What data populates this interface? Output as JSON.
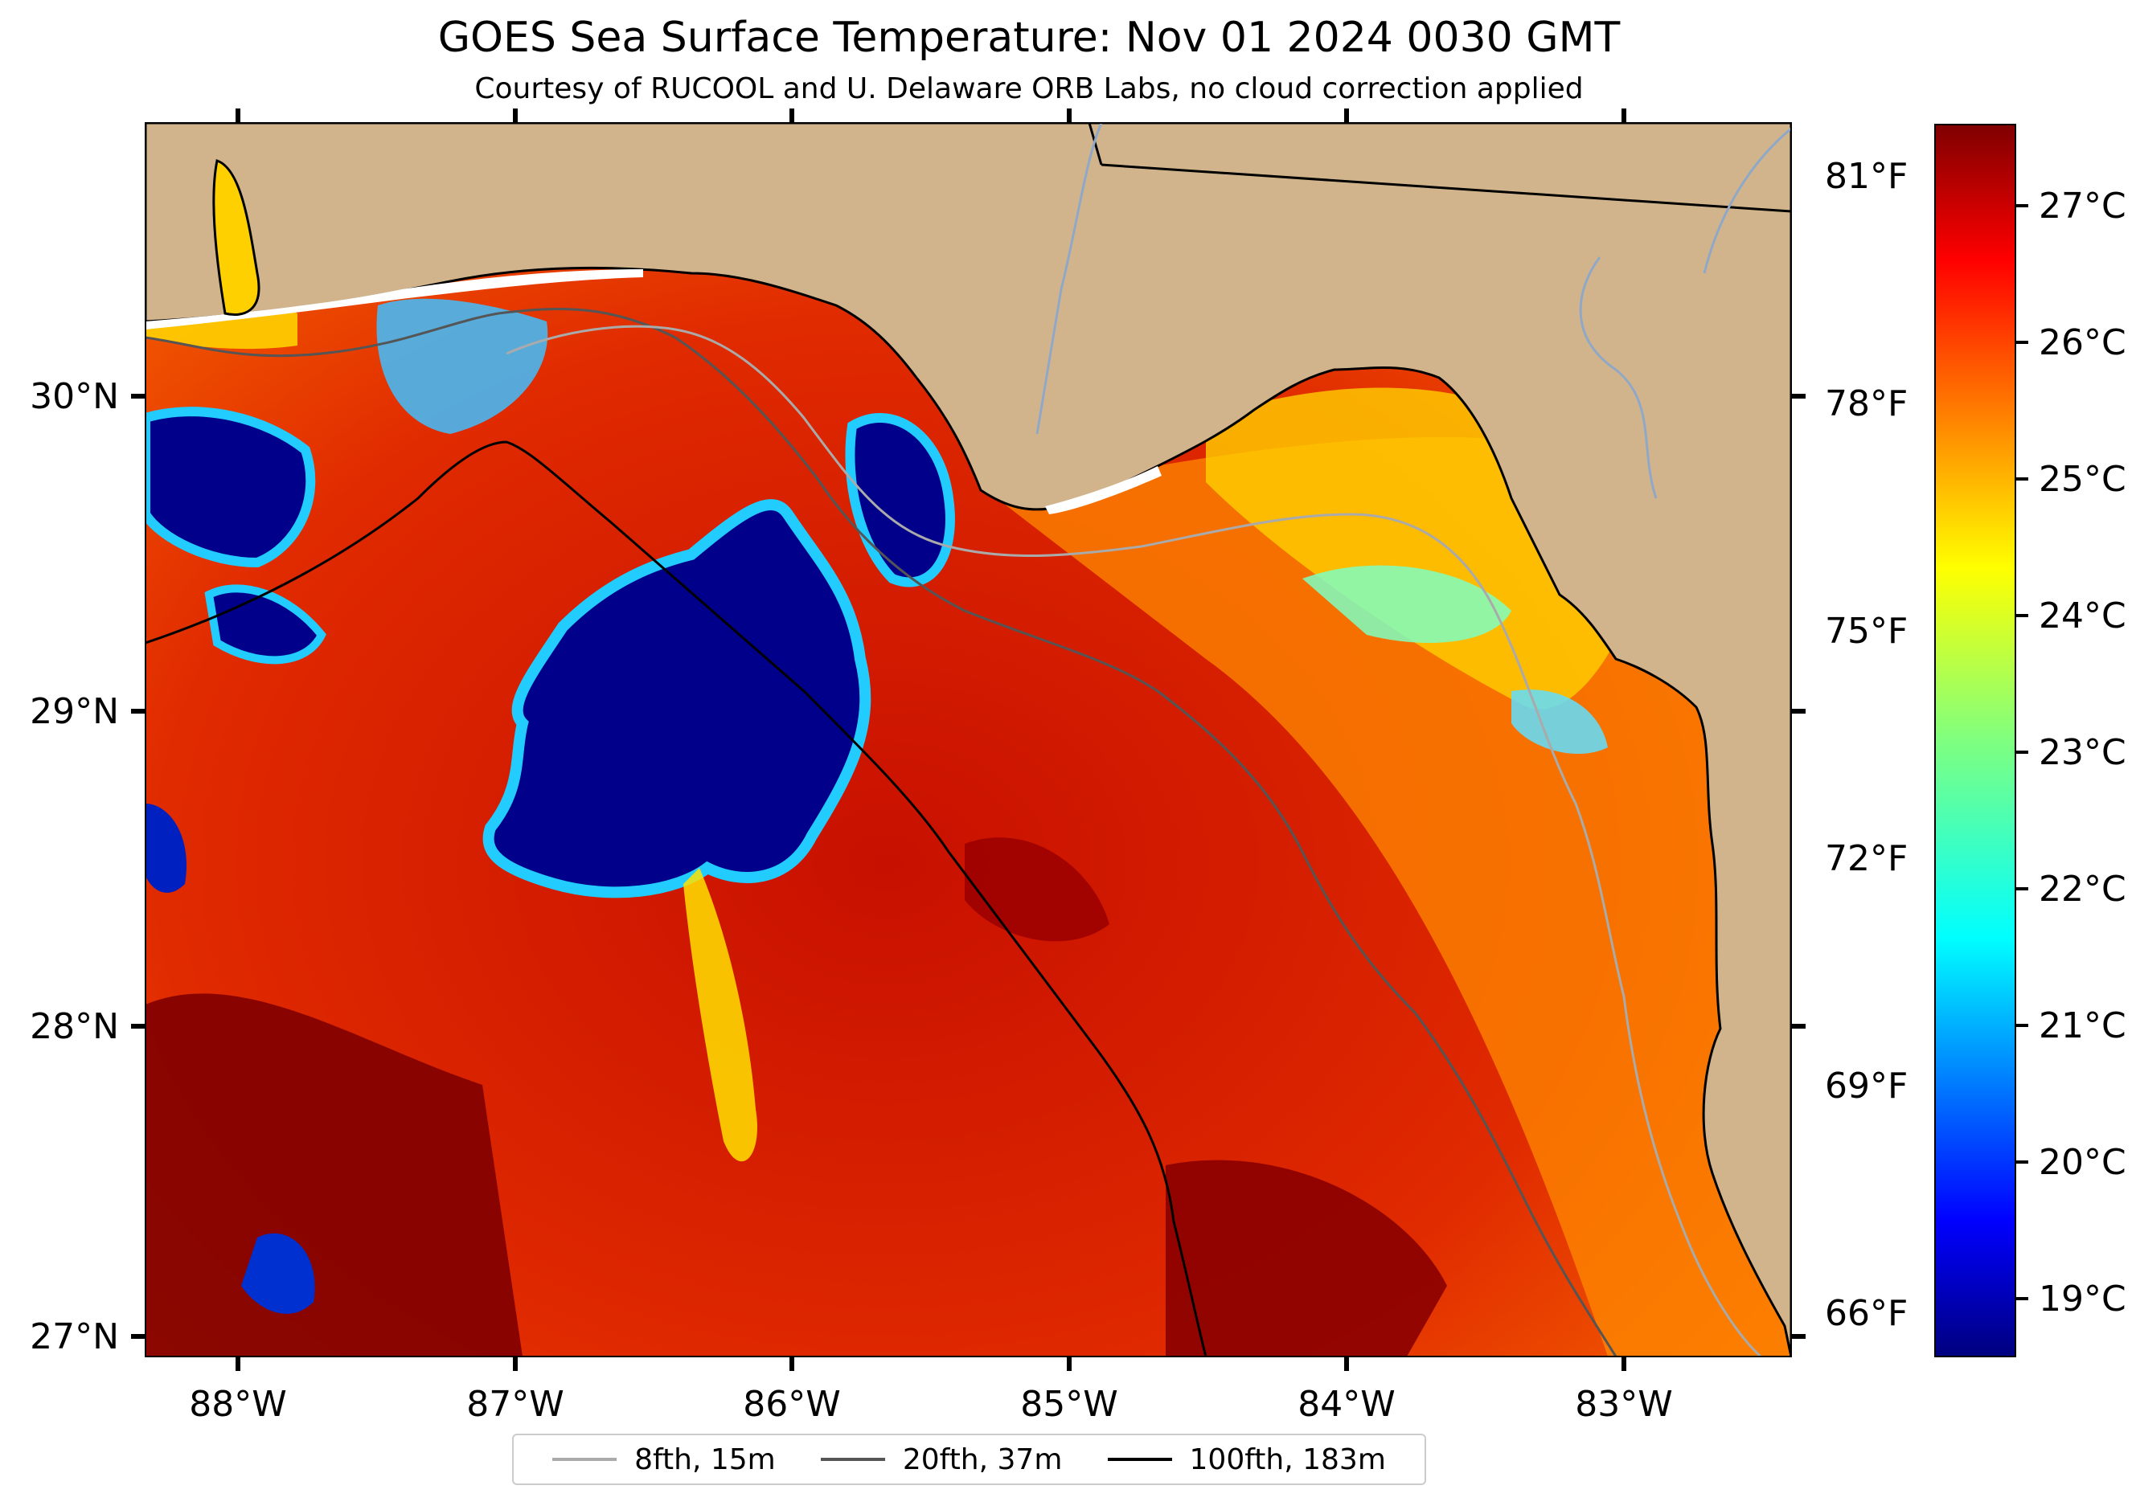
{
  "title": "GOES Sea Surface Temperature: Nov 01 2024 0030 GMT",
  "subtitle": "Courtesy of RUCOOL and U. Delaware ORB Labs, no cloud correction applied",
  "map": {
    "lon_ticks": [
      "88°W",
      "87°W",
      "86°W",
      "85°W",
      "84°W",
      "83°W"
    ],
    "lat_ticks": [
      "30°N",
      "29°N",
      "28°N",
      "27°N"
    ],
    "fahrenheit_ticks": [
      "81°F",
      "78°F",
      "75°F",
      "72°F",
      "69°F",
      "66°F"
    ],
    "extent": {
      "lon_min": -88.33,
      "lon_max": -82.4,
      "lat_min": 26.93,
      "lat_max": 30.86
    },
    "land_color": "#d2b48c",
    "water_color_warm": "#c81e14"
  },
  "colorbar": {
    "label_unit": "°C",
    "ticks": [
      "27°C",
      "26°C",
      "25°C",
      "24°C",
      "23°C",
      "22°C",
      "21°C",
      "20°C",
      "19°C"
    ],
    "range_c": [
      18.6,
      27.6
    ],
    "colormap": "jet"
  },
  "legend": [
    {
      "label": "8fth, 15m",
      "color": "#aaaaaa"
    },
    {
      "label": "20fth, 37m",
      "color": "#555555"
    },
    {
      "label": "100fth, 183m",
      "color": "#000000"
    }
  ]
}
